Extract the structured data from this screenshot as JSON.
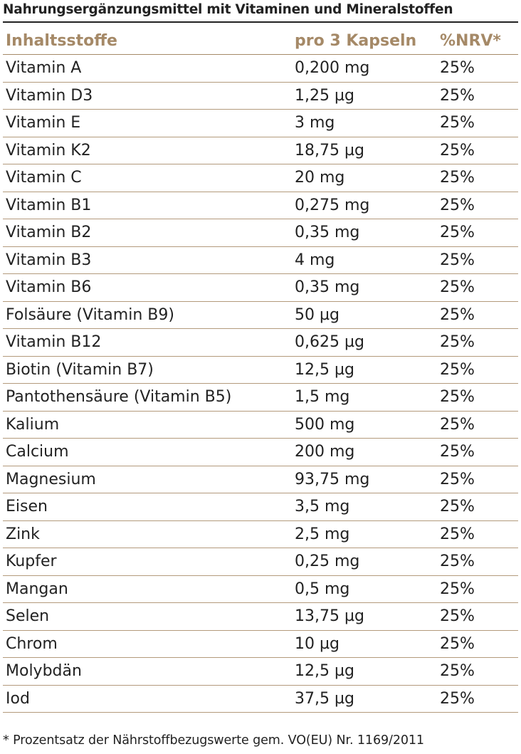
{
  "title": "Nahrungsergänzungsmittel mit Vitaminen und Mineralstoffen",
  "colors": {
    "header_text": "#a58967",
    "rule": "#b39a7c",
    "body_text": "#222222"
  },
  "table": {
    "headers": [
      "Inhaltsstoffe",
      "pro 3 Kapseln",
      "%NRV*"
    ],
    "rows": [
      [
        "Vitamin A",
        "0,200 mg",
        "25%"
      ],
      [
        "Vitamin D3",
        "1,25 µg",
        "25%"
      ],
      [
        "Vitamin E",
        "3 mg",
        "25%"
      ],
      [
        "Vitamin K2",
        "18,75 µg",
        "25%"
      ],
      [
        "Vitamin C",
        "20 mg",
        "25%"
      ],
      [
        "Vitamin B1",
        "0,275 mg",
        "25%"
      ],
      [
        "Vitamin B2",
        "0,35 mg",
        "25%"
      ],
      [
        "Vitamin B3",
        "4 mg",
        "25%"
      ],
      [
        "Vitamin B6",
        "0,35 mg",
        "25%"
      ],
      [
        "Folsäure (Vitamin B9)",
        "50 µg",
        "25%"
      ],
      [
        "Vitamin B12",
        "0,625 µg",
        "25%"
      ],
      [
        "Biotin (Vitamin B7)",
        "12,5 µg",
        "25%"
      ],
      [
        "Pantothensäure (Vitamin B5)",
        "1,5 mg",
        "25%"
      ],
      [
        "Kalium",
        "500 mg",
        "25%"
      ],
      [
        "Calcium",
        "200 mg",
        "25%"
      ],
      [
        "Magnesium",
        "93,75 mg",
        "25%"
      ],
      [
        "Eisen",
        "3,5 mg",
        "25%"
      ],
      [
        "Zink",
        "2,5 mg",
        "25%"
      ],
      [
        "Kupfer",
        "0,25 mg",
        "25%"
      ],
      [
        "Mangan",
        "0,5 mg",
        "25%"
      ],
      [
        "Selen",
        "13,75 µg",
        "25%"
      ],
      [
        "Chrom",
        "10 µg",
        "25%"
      ],
      [
        "Molybdän",
        "12,5 µg",
        "25%"
      ],
      [
        "Iod",
        "37,5 µg",
        "25%"
      ]
    ]
  },
  "footnote": "* Prozentsatz der Nährstoffbezugswerte gem. VO(EU) Nr. 1169/2011"
}
